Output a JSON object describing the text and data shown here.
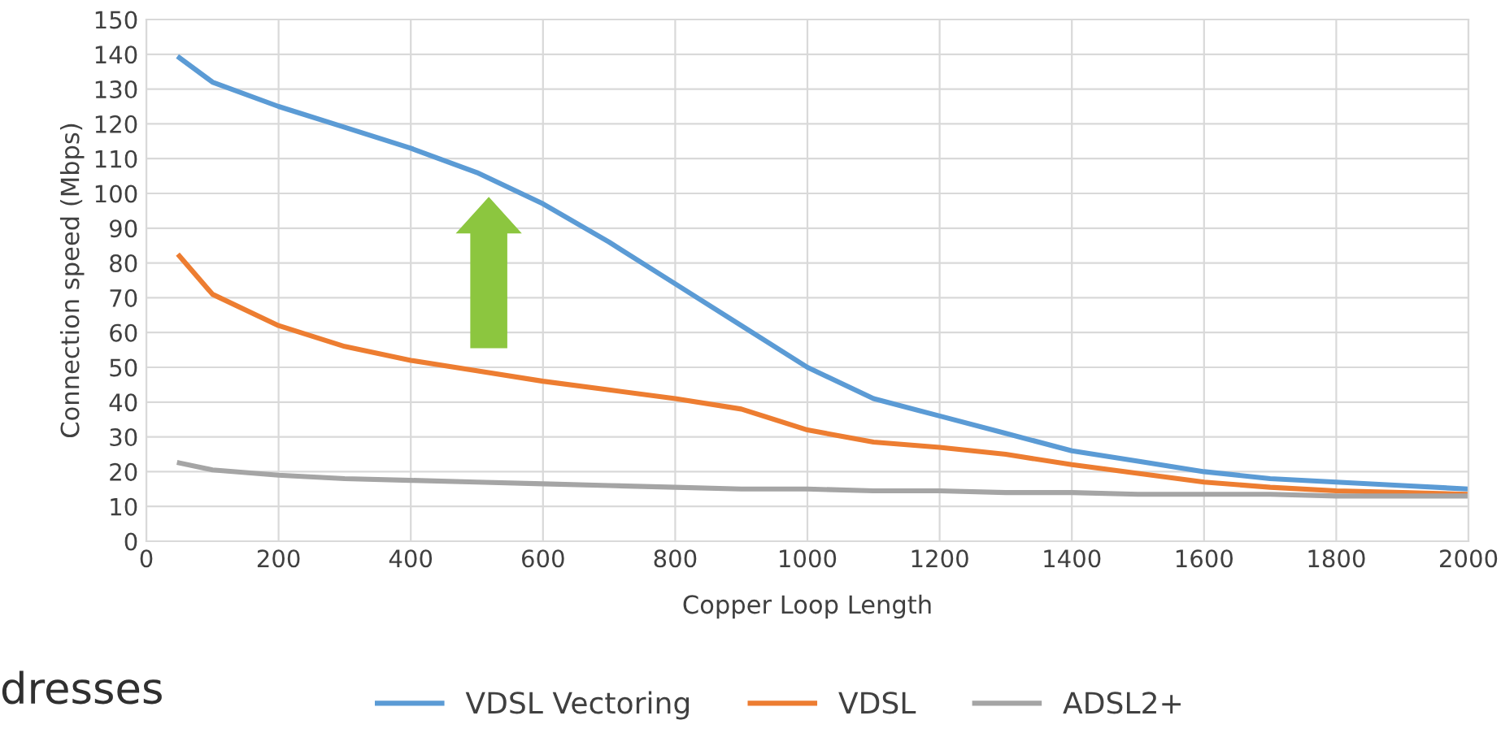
{
  "chart_data": {
    "type": "line",
    "xlabel": "Copper Loop Length",
    "ylabel": "Connection speed (Mbps)",
    "x": [
      50,
      100,
      200,
      300,
      400,
      500,
      600,
      700,
      800,
      900,
      1000,
      1100,
      1200,
      1300,
      1400,
      1500,
      1600,
      1700,
      1800,
      1900,
      2000
    ],
    "series": [
      {
        "name": "VDSL Vectoring",
        "color": "#5b9bd5",
        "values": [
          139,
          132,
          125,
          119,
          113,
          106,
          97,
          86,
          74,
          62,
          50,
          41,
          36,
          31,
          26,
          23,
          20,
          18,
          17,
          16,
          15
        ]
      },
      {
        "name": "VDSL",
        "color": "#ed7d31",
        "values": [
          82,
          71,
          62,
          56,
          52,
          49,
          46,
          43.5,
          41,
          38,
          32,
          28.5,
          27,
          25,
          22,
          19.5,
          17,
          15.5,
          14.5,
          14,
          13.5
        ]
      },
      {
        "name": "ADSL2+",
        "color": "#a5a5a5",
        "values": [
          22.5,
          20.5,
          19,
          18,
          17.5,
          17,
          16.5,
          16,
          15.5,
          15,
          15,
          14.5,
          14.5,
          14,
          14,
          13.5,
          13.5,
          13.5,
          13,
          13,
          13
        ]
      }
    ],
    "xlim": [
      0,
      2000
    ],
    "xticks": [
      0,
      200,
      400,
      600,
      800,
      1000,
      1200,
      1400,
      1600,
      1800,
      2000
    ],
    "ylim": [
      0,
      150
    ],
    "yticks": [
      0,
      10,
      20,
      30,
      40,
      50,
      60,
      70,
      80,
      90,
      100,
      110,
      120,
      130,
      140,
      150
    ],
    "grid": true,
    "legend": "bottom",
    "marker": "none",
    "line_style": "solid",
    "annotations": [
      "dresses"
    ]
  }
}
